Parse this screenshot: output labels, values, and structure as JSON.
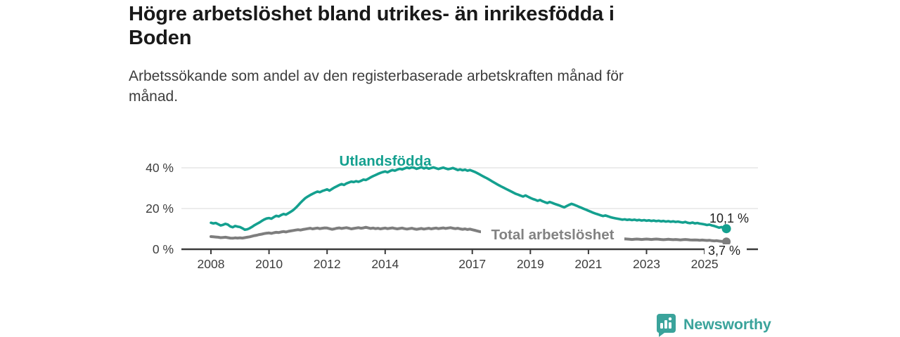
{
  "header": {
    "title_line1": "Högre arbetslöshet bland utrikes- än inrikesfödda i",
    "title_line2": "Boden",
    "subtitle_line1": "Arbetssökande som andel av den registerbaserade arbetskraften månad för",
    "subtitle_line2": "månad."
  },
  "chart_data": {
    "type": "line",
    "title": "Högre arbetslöshet bland utrikes- än inrikesfödda i Boden",
    "subtitle": "Arbetssökande som andel av den registerbaserade arbetskraften månad för månad.",
    "unit": "%",
    "grid": true,
    "legend_position": "inline-labels-on-lines",
    "x_start_year": 2008,
    "points_per_year": 12,
    "x_ticks": [
      2008,
      2010,
      2012,
      2014,
      2017,
      2019,
      2021,
      2023,
      2025
    ],
    "y_ticks": [
      {
        "value": 0,
        "label": "0 %"
      },
      {
        "value": 20,
        "label": "20 %"
      },
      {
        "value": 40,
        "label": "40 %"
      }
    ],
    "ylim": [
      0,
      45
    ],
    "series": [
      {
        "name": "Utlandsfödda",
        "color": "#14A08F",
        "end_label": "10,1 %",
        "end_value": 10.1,
        "values": [
          13.0,
          12.7,
          12.9,
          12.3,
          11.7,
          12.0,
          12.5,
          12.1,
          11.2,
          10.8,
          11.4,
          11.1,
          10.9,
          10.3,
          9.6,
          9.8,
          10.3,
          11.0,
          11.8,
          12.5,
          13.1,
          13.9,
          14.6,
          15.1,
          15.3,
          15.0,
          15.8,
          16.4,
          16.1,
          16.8,
          17.3,
          17.0,
          17.7,
          18.4,
          19.2,
          20.3,
          21.5,
          22.8,
          24.0,
          25.1,
          25.9,
          26.6,
          27.2,
          27.8,
          28.3,
          28.0,
          28.6,
          29.0,
          29.4,
          28.8,
          29.6,
          30.3,
          30.9,
          31.5,
          32.0,
          31.6,
          32.3,
          32.8,
          33.2,
          33.0,
          33.4,
          33.1,
          33.6,
          34.2,
          34.0,
          34.6,
          35.3,
          35.9,
          36.4,
          37.0,
          37.5,
          37.9,
          38.2,
          37.8,
          38.4,
          38.9,
          38.6,
          39.1,
          39.5,
          39.2,
          39.7,
          40.1,
          39.8,
          40.2,
          40.0,
          39.5,
          39.9,
          40.3,
          39.7,
          40.1,
          39.6,
          39.9,
          40.2,
          39.8,
          39.4,
          39.8,
          40.1,
          39.7,
          39.3,
          39.6,
          39.9,
          39.4,
          38.9,
          39.2,
          38.8,
          39.1,
          38.6,
          38.9,
          38.5,
          38.0,
          37.4,
          36.8,
          36.1,
          35.5,
          34.9,
          34.2,
          33.5,
          32.8,
          32.1,
          31.4,
          30.8,
          30.2,
          29.6,
          29.0,
          28.4,
          27.8,
          27.2,
          26.8,
          26.3,
          25.9,
          26.4,
          25.8,
          25.2,
          24.7,
          24.3,
          23.8,
          24.2,
          23.6,
          23.1,
          22.7,
          23.2,
          22.8,
          22.3,
          21.9,
          21.5,
          21.0,
          20.6,
          21.2,
          21.8,
          22.3,
          21.9,
          21.4,
          20.9,
          20.4,
          19.9,
          19.4,
          18.9,
          18.4,
          17.9,
          17.5,
          17.1,
          16.7,
          16.3,
          16.6,
          16.2,
          15.8,
          15.5,
          15.2,
          15.0,
          14.8,
          14.5,
          14.7,
          14.4,
          14.6,
          14.3,
          14.5,
          14.2,
          14.4,
          14.1,
          14.3,
          14.0,
          14.2,
          13.9,
          14.1,
          13.8,
          14.0,
          13.7,
          13.9,
          13.6,
          13.8,
          13.5,
          13.7,
          13.4,
          13.6,
          13.3,
          13.1,
          13.4,
          13.0,
          12.8,
          13.1,
          12.7,
          12.9,
          12.6,
          12.4,
          12.2,
          11.9,
          12.1,
          11.7,
          11.4,
          11.0,
          10.6,
          10.9,
          10.4,
          10.1
        ]
      },
      {
        "name": "Total arbetslöshet",
        "color": "#7E7E7E",
        "end_label": "3,7 %",
        "end_value": 3.7,
        "values": [
          6.2,
          6.1,
          6.0,
          5.9,
          5.7,
          5.8,
          5.9,
          5.7,
          5.5,
          5.4,
          5.6,
          5.5,
          5.6,
          5.5,
          5.7,
          5.9,
          6.1,
          6.4,
          6.7,
          6.9,
          7.2,
          7.4,
          7.7,
          7.9,
          8.0,
          7.8,
          8.1,
          8.3,
          8.2,
          8.5,
          8.7,
          8.5,
          8.8,
          9.0,
          9.2,
          9.4,
          9.6,
          9.4,
          9.7,
          9.9,
          10.1,
          10.3,
          10.0,
          10.2,
          10.4,
          10.1,
          10.3,
          10.5,
          10.4,
          10.1,
          9.8,
          10.0,
          10.3,
          10.5,
          10.2,
          10.4,
          10.6,
          10.3,
          10.0,
          10.2,
          10.4,
          10.6,
          10.3,
          10.5,
          10.8,
          10.5,
          10.2,
          10.4,
          10.1,
          10.3,
          10.0,
          10.2,
          10.4,
          10.1,
          10.3,
          10.5,
          10.2,
          10.0,
          10.2,
          10.4,
          10.1,
          9.9,
          10.1,
          10.3,
          10.0,
          9.8,
          10.0,
          10.2,
          9.9,
          10.1,
          10.3,
          10.0,
          10.2,
          10.4,
          10.1,
          10.3,
          10.5,
          10.2,
          10.4,
          10.6,
          10.3,
          10.1,
          10.3,
          10.0,
          9.8,
          10.0,
          9.7,
          9.9,
          9.6,
          9.3,
          9.0,
          8.7,
          8.5,
          8.2,
          8.0,
          7.8,
          7.6,
          7.4,
          7.2,
          7.0,
          6.9,
          6.7,
          6.6,
          6.4,
          6.3,
          6.2,
          6.1,
          6.0,
          5.9,
          5.8,
          5.9,
          5.8,
          5.7,
          5.6,
          5.5,
          5.6,
          5.7,
          5.8,
          5.7,
          5.6,
          5.5,
          5.4,
          5.5,
          5.6,
          5.7,
          5.8,
          6.0,
          6.2,
          6.4,
          6.5,
          6.4,
          6.3,
          6.2,
          6.1,
          6.0,
          5.9,
          5.8,
          5.7,
          5.6,
          5.5,
          5.4,
          5.3,
          5.2,
          5.3,
          5.2,
          5.1,
          5.0,
          5.1,
          5.0,
          4.9,
          5.0,
          5.1,
          5.0,
          4.9,
          4.8,
          4.9,
          5.0,
          4.9,
          4.8,
          4.9,
          5.0,
          4.9,
          4.8,
          4.9,
          5.0,
          4.9,
          4.8,
          4.7,
          4.8,
          4.9,
          4.8,
          4.7,
          4.8,
          4.7,
          4.6,
          4.7,
          4.8,
          4.7,
          4.6,
          4.5,
          4.6,
          4.5,
          4.4,
          4.5,
          4.4,
          4.3,
          4.4,
          4.2,
          4.1,
          4.2,
          4.0,
          3.9,
          3.8,
          3.7
        ]
      }
    ],
    "colors": {
      "grid": "#D9D9D9",
      "axis": "#3A3A3A",
      "tick_text": "#3D3D3D",
      "value_label_text": "#1F1F1F"
    }
  },
  "branding": {
    "logo_text": "Newsworthy",
    "logo_color": "#3AA39B"
  }
}
